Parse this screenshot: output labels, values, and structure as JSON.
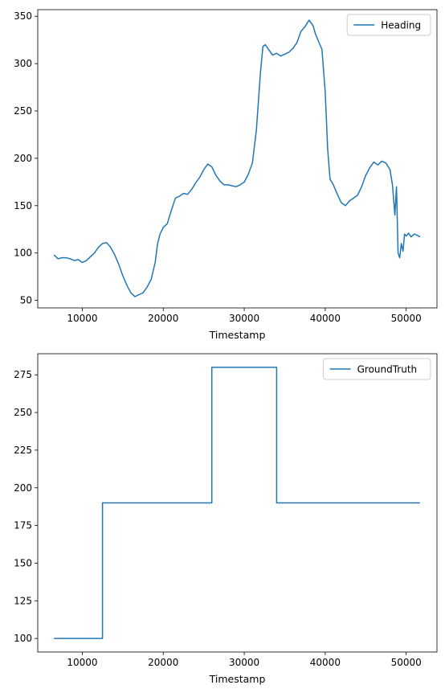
{
  "chart_data": [
    {
      "type": "line",
      "title": "",
      "xlabel": "Timestamp",
      "ylabel": "",
      "xlim": [
        4500,
        53800
      ],
      "ylim": [
        42,
        357
      ],
      "xticks": [
        10000,
        20000,
        30000,
        40000,
        50000
      ],
      "yticks": [
        50,
        100,
        150,
        200,
        250,
        300,
        350
      ],
      "grid": false,
      "legend": "top-right",
      "series": [
        {
          "name": "Heading",
          "color": "#1f77b4",
          "x": [
            6500,
            7000,
            7500,
            8000,
            8500,
            9000,
            9500,
            10000,
            10500,
            11000,
            11500,
            12000,
            12500,
            13000,
            13500,
            14000,
            14500,
            15000,
            15500,
            16000,
            16500,
            17000,
            17500,
            18000,
            18500,
            19000,
            19300,
            19600,
            20000,
            20500,
            21000,
            21500,
            22000,
            22500,
            23000,
            23500,
            24000,
            24500,
            25000,
            25500,
            26000,
            26500,
            27000,
            27500,
            28000,
            28500,
            29000,
            29500,
            30000,
            30500,
            31000,
            31500,
            32000,
            32300,
            32600,
            33000,
            33500,
            34000,
            34500,
            35000,
            35500,
            36000,
            36500,
            37000,
            37500,
            38000,
            38500,
            38800,
            39200,
            39600,
            40000,
            40300,
            40600,
            41000,
            41500,
            42000,
            42500,
            43000,
            43500,
            44000,
            44500,
            45000,
            45500,
            46000,
            46500,
            47000,
            47500,
            48000,
            48300,
            48600,
            48800,
            49000,
            49200,
            49400,
            49600,
            49800,
            50000,
            50300,
            50600,
            51000,
            51300,
            51700
          ],
          "values": [
            98,
            94,
            95,
            95,
            94,
            92,
            93,
            90,
            92,
            96,
            100,
            106,
            110,
            111,
            106,
            98,
            88,
            76,
            66,
            58,
            54,
            56,
            58,
            64,
            72,
            90,
            110,
            120,
            127,
            131,
            145,
            158,
            160,
            163,
            162,
            167,
            174,
            180,
            188,
            194,
            191,
            182,
            176,
            172,
            172,
            171,
            170,
            172,
            175,
            183,
            195,
            230,
            290,
            318,
            320,
            315,
            309,
            311,
            308,
            310,
            312,
            316,
            322,
            334,
            339,
            346,
            340,
            331,
            323,
            315,
            270,
            210,
            178,
            172,
            162,
            153,
            150,
            155,
            158,
            161,
            170,
            182,
            190,
            196,
            193,
            197,
            195,
            188,
            172,
            140,
            170,
            100,
            95,
            110,
            102,
            120,
            118,
            121,
            117,
            120,
            119,
            117
          ]
        }
      ]
    },
    {
      "type": "line",
      "title": "",
      "xlabel": "Timestamp",
      "ylabel": "",
      "xlim": [
        4500,
        53800
      ],
      "ylim": [
        91,
        289
      ],
      "xticks": [
        10000,
        20000,
        30000,
        40000,
        50000
      ],
      "yticks": [
        100,
        125,
        150,
        175,
        200,
        225,
        250,
        275
      ],
      "grid": false,
      "legend": "top-right",
      "series": [
        {
          "name": "GroundTruth",
          "color": "#1f77b4",
          "x": [
            6500,
            12500,
            12500,
            26000,
            26000,
            34000,
            34000,
            51700
          ],
          "values": [
            100,
            100,
            190,
            190,
            280,
            280,
            190,
            190
          ]
        }
      ]
    }
  ]
}
